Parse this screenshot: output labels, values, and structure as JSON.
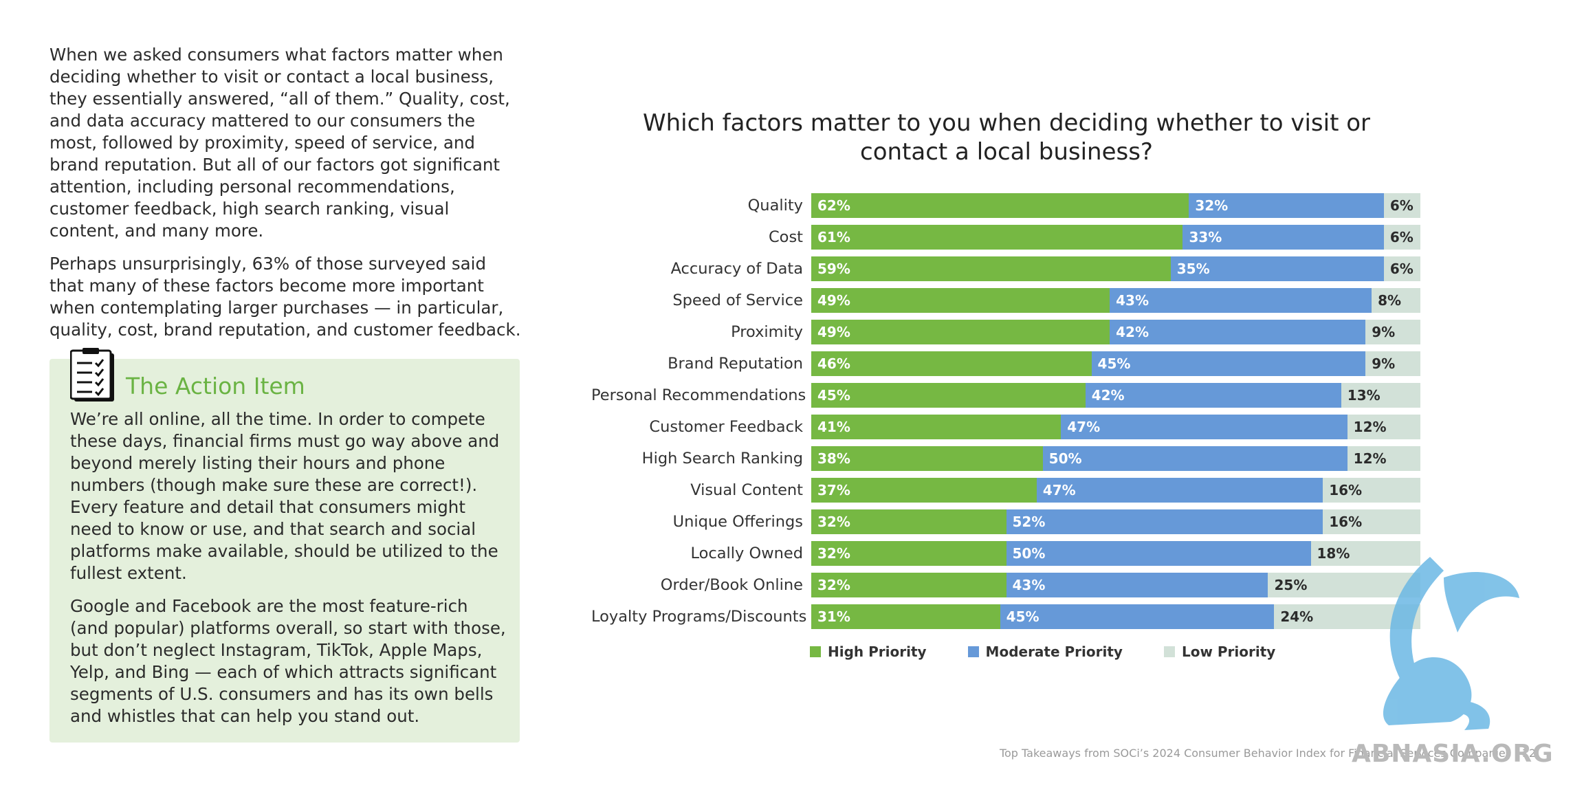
{
  "intro": {
    "p1": "When we asked consumers what factors matter when deciding whether to visit or contact a local business, they essentially answered, “all of them.” Quality, cost, and data accuracy mattered to our consumers the most, followed by proximity, speed of service, and brand reputation. But all of our factors got significant attention, including personal recommendations, customer feedback, high search ranking, visual content, and many more.",
    "p2": "Perhaps unsurprisingly, 63% of those surveyed said that many of these factors become more important when contemplating larger purchases — in particular, quality, cost, brand reputation, and customer feedback."
  },
  "action": {
    "icon": "checklist-clipboard-icon",
    "title": "The Action Item",
    "p1": "We’re all online, all the time. In order to compete these days, financial firms must go way above and beyond merely listing their hours and phone numbers (though make sure these are correct!). Every feature and detail that consumers might need to know or use, and that search and social platforms make available, should be utilized to the fullest extent.",
    "p2": "Google and Facebook are the most feature-rich (and popular) platforms overall, so start with those, but don’t neglect Instagram, TikTok, Apple Maps, Yelp, and Bing — each of which attracts significant segments of U.S. consumers and has its own bells and whistles that can help you stand out."
  },
  "chart_data": {
    "type": "bar",
    "orientation": "horizontal",
    "stacked": true,
    "title": "Which factors matter to you when deciding whether to visit or contact a local business?",
    "categories": [
      "Quality",
      "Cost",
      "Accuracy of Data",
      "Speed of Service",
      "Proximity",
      "Brand Reputation",
      "Personal Recommendations",
      "Customer Feedback",
      "High Search Ranking",
      "Visual Content",
      "Unique Offerings",
      "Locally Owned",
      "Order/Book Online",
      "Loyalty Programs/Discounts"
    ],
    "series": [
      {
        "name": "High Priority",
        "color": "#76b843",
        "values": [
          62,
          61,
          59,
          49,
          49,
          46,
          45,
          41,
          38,
          37,
          32,
          32,
          32,
          31
        ]
      },
      {
        "name": "Moderate Priority",
        "color": "#6699d8",
        "values": [
          32,
          33,
          35,
          43,
          42,
          45,
          42,
          47,
          50,
          47,
          52,
          50,
          43,
          45
        ]
      },
      {
        "name": "Low Priority",
        "color": "#d2e1d8",
        "values": [
          6,
          6,
          6,
          8,
          9,
          9,
          13,
          12,
          12,
          16,
          16,
          18,
          25,
          24
        ]
      }
    ],
    "unit": "%",
    "legend": "bottom",
    "grid": false
  },
  "footer": "Top Takeaways from SOCi’s 2024 Consumer Behavior Index for Financial Services Companies | 12",
  "watermark": {
    "icon": "griffin-logo-icon",
    "text": "ABNASIA.ORG"
  }
}
